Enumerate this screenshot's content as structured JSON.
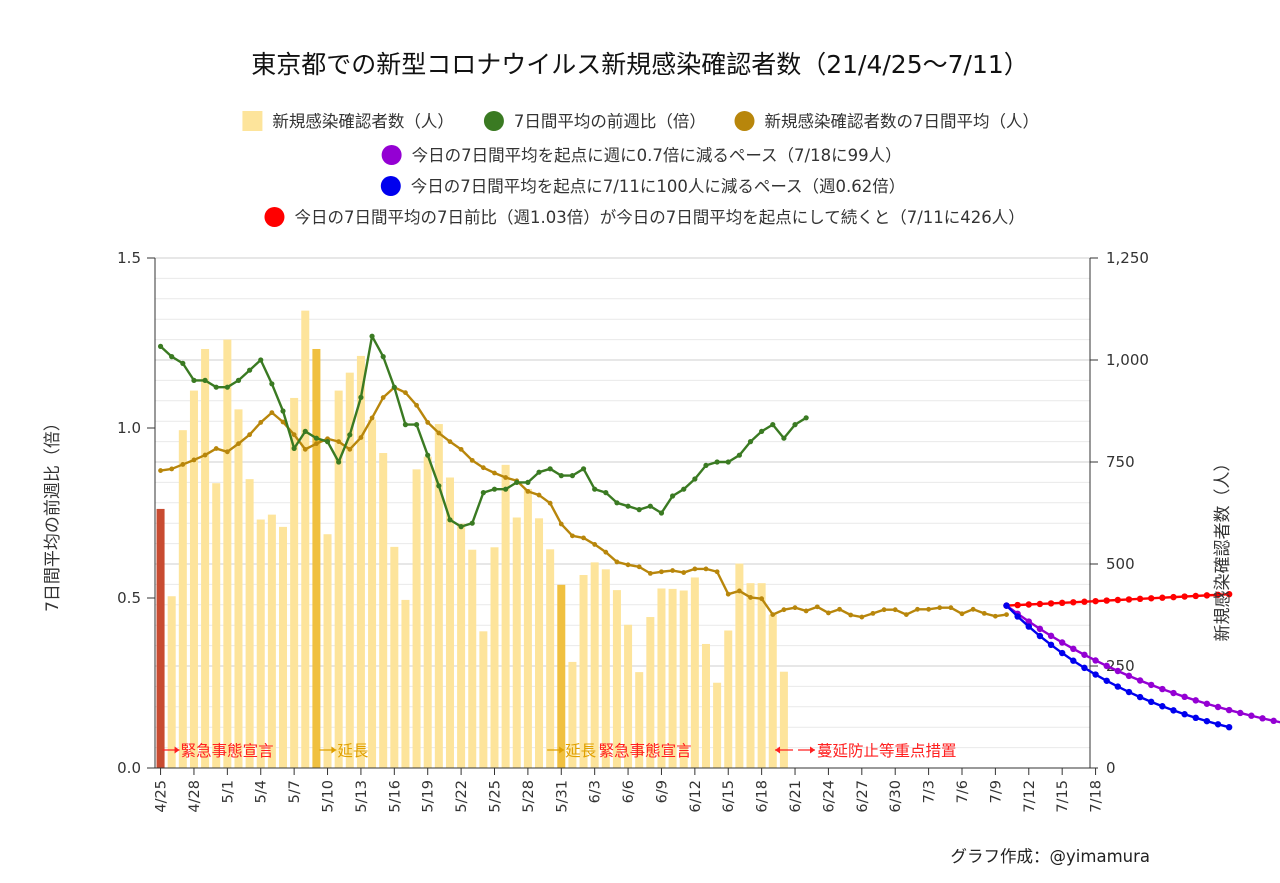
{
  "chart_data": {
    "type": "bar",
    "title": "東京都での新型コロナウイルス新規感染確認者数（21/4/25〜7/11）",
    "ylabel_left": "7日間平均の前週比（倍）",
    "ylabel_right": "新規感染確認者数（人）",
    "ylim_left": [
      0,
      1.5
    ],
    "ylim_right": [
      0,
      1250
    ],
    "left_ticks": [
      "0.0",
      "0.5",
      "1.0",
      "1.5"
    ],
    "right_ticks": [
      "0",
      "250",
      "500",
      "750",
      "1,000",
      "1,250"
    ],
    "x_tick_labels": [
      "4/25",
      "4/28",
      "5/1",
      "5/4",
      "5/7",
      "5/10",
      "5/13",
      "5/16",
      "5/19",
      "5/22",
      "5/25",
      "5/28",
      "5/31",
      "6/3",
      "6/6",
      "6/9",
      "6/12",
      "6/15",
      "6/18",
      "6/21",
      "6/24",
      "6/27",
      "6/30",
      "7/3",
      "7/6",
      "7/9",
      "7/12",
      "7/15",
      "7/18"
    ],
    "legend": [
      {
        "label": "新規感染確認者数（人）",
        "color": "#fde49b",
        "marker": "square"
      },
      {
        "label": "7日間平均の前週比（倍）",
        "color": "#3a7a22",
        "marker": "circle"
      },
      {
        "label": "新規感染確認者数の7日間平均（人）",
        "color": "#b8860b",
        "marker": "circle"
      },
      {
        "label": "今日の7日間平均を起点に週に0.7倍に減るペース（7/18に99人）",
        "color": "#9400d3",
        "marker": "circle"
      },
      {
        "label": "今日の7日間平均を起点に7/11に100人に減るペース（週0.62倍）",
        "color": "#0000ee",
        "marker": "circle"
      },
      {
        "label": "今日の7日間平均の7日前比（週1.03倍）が今日の7日間平均を起点にして続くと（7/11に426人）",
        "color": "#ff0000",
        "marker": "circle"
      }
    ],
    "x_start": "4/25",
    "daily_cases": [
      635,
      421,
      828,
      925,
      1027,
      698,
      1050,
      879,
      708,
      609,
      621,
      591,
      907,
      1121,
      1027,
      573,
      925,
      969,
      1010,
      854,
      772,
      542,
      412,
      732,
      763,
      843,
      712,
      599,
      535,
      335,
      541,
      743,
      614,
      684,
      612,
      536,
      449,
      260,
      473,
      504,
      487,
      436,
      351,
      235,
      370,
      440,
      439,
      435,
      467,
      304,
      209,
      337,
      501,
      453,
      453,
      376,
      236
    ],
    "event_days": [
      0,
      14,
      36,
      57
    ],
    "weekly_ratio": [
      1.24,
      1.21,
      1.19,
      1.14,
      1.14,
      1.12,
      1.12,
      1.14,
      1.17,
      1.2,
      1.13,
      1.05,
      0.94,
      0.99,
      0.97,
      0.96,
      0.9,
      0.98,
      1.09,
      1.27,
      1.21,
      1.12,
      1.01,
      1.01,
      0.92,
      0.83,
      0.73,
      0.71,
      0.72,
      0.81,
      0.82,
      0.82,
      0.84,
      0.84,
      0.87,
      0.88,
      0.86,
      0.86,
      0.88,
      0.82,
      0.81,
      0.78,
      0.77,
      0.76,
      0.77,
      0.75,
      0.8,
      0.82,
      0.85,
      0.89,
      0.9,
      0.9,
      0.92,
      0.96,
      0.99,
      1.01,
      0.97,
      1.01,
      1.03
    ],
    "avg7": [
      729,
      733,
      744,
      755,
      767,
      783,
      775,
      795,
      817,
      847,
      871,
      848,
      817,
      781,
      795,
      807,
      800,
      781,
      810,
      858,
      908,
      933,
      920,
      889,
      847,
      821,
      800,
      781,
      754,
      736,
      723,
      712,
      704,
      678,
      669,
      649,
      598,
      569,
      564,
      548,
      529,
      505,
      498,
      493,
      477,
      481,
      484,
      479,
      488,
      488,
      481,
      426,
      434,
      418,
      415,
      376,
      388,
      393,
      385,
      395,
      380,
      389,
      375,
      370,
      379,
      388,
      388,
      376,
      389,
      389,
      393,
      393,
      378,
      389,
      379,
      372,
      376
    ],
    "projection_07": {
      "start": 398,
      "end": 99,
      "days": 27,
      "end_label": "7/18に99人"
    },
    "projection_100": {
      "start": 398,
      "end": 100,
      "days": 20,
      "end_label": "7/11に100人"
    },
    "projection_103": {
      "start": 398,
      "end": 426,
      "days": 20,
      "end_label": "7/11に426人"
    },
    "annotations": [
      {
        "text": "緊急事態宣言",
        "color": "#ff2020"
      },
      {
        "text": "延長",
        "color": "#e0a000"
      },
      {
        "text": "延長",
        "color": "#e0a000"
      },
      {
        "text": "緊急事態宣言",
        "color": "#ff2020"
      },
      {
        "text": "蔓延防止等重点措置",
        "color": "#ff2020"
      }
    ],
    "credit": "グラフ作成：@yimamura",
    "colors": {
      "bar": "#fde49b",
      "event_bar_red": "#c84b31",
      "event_bar_gold": "#f0c040",
      "ratio": "#3a7a22",
      "avg": "#b8860b",
      "purple": "#9400d3",
      "blue": "#0000ee",
      "red": "#ff0000"
    }
  }
}
